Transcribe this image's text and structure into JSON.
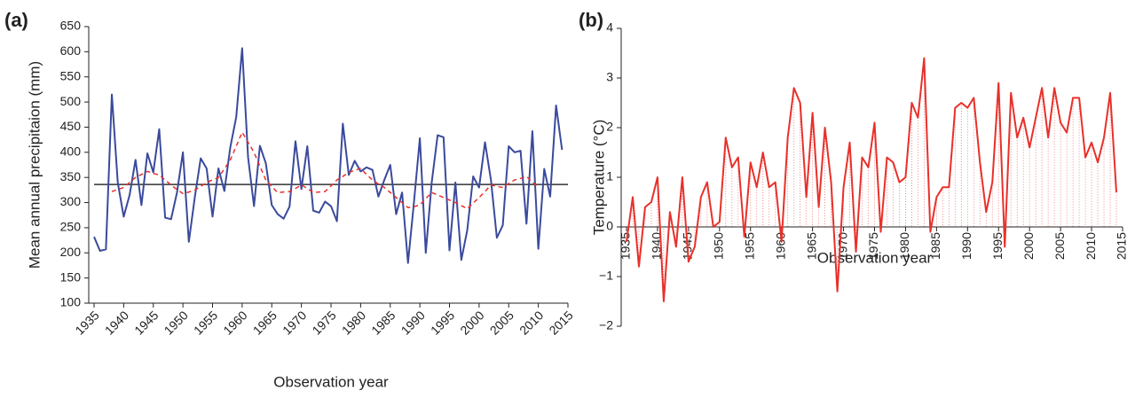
{
  "chart_data": [
    {
      "type": "line",
      "panel_label": "(a)",
      "x_label": "Observation year",
      "y_label": "Mean annual precipitaion (mm)",
      "x": [
        1935,
        1936,
        1937,
        1938,
        1939,
        1940,
        1941,
        1942,
        1943,
        1944,
        1945,
        1946,
        1947,
        1948,
        1949,
        1950,
        1951,
        1952,
        1953,
        1954,
        1955,
        1956,
        1957,
        1958,
        1959,
        1960,
        1961,
        1962,
        1963,
        1964,
        1965,
        1966,
        1967,
        1968,
        1969,
        1970,
        1971,
        1972,
        1973,
        1974,
        1975,
        1976,
        1977,
        1978,
        1979,
        1980,
        1981,
        1982,
        1983,
        1984,
        1985,
        1986,
        1987,
        1988,
        1989,
        1990,
        1991,
        1992,
        1993,
        1994,
        1995,
        1996,
        1997,
        1998,
        1999,
        2000,
        2001,
        2002,
        2003,
        2004,
        2005,
        2006,
        2007,
        2008,
        2009,
        2010,
        2011,
        2012,
        2013,
        2014
      ],
      "series": [
        {
          "color": "#3a4a9c",
          "dash": false,
          "values": [
            232,
            204,
            207,
            515,
            340,
            272,
            315,
            385,
            295,
            398,
            360,
            446,
            270,
            267,
            320,
            400,
            222,
            310,
            388,
            368,
            272,
            368,
            323,
            410,
            470,
            607,
            390,
            293,
            413,
            378,
            295,
            277,
            268,
            292,
            422,
            327,
            412,
            284,
            280,
            302,
            293,
            263,
            457,
            355,
            383,
            362,
            370,
            365,
            312,
            345,
            375,
            277,
            320,
            180,
            300,
            428,
            200,
            340,
            434,
            430,
            205,
            340,
            186,
            245,
            352,
            330,
            420,
            345,
            230,
            255,
            412,
            400,
            403,
            258,
            442,
            208,
            367,
            312,
            493,
            405
          ]
        },
        {
          "color": "#e8302a",
          "dash": true,
          "values": [
            null,
            null,
            null,
            322,
            326,
            330,
            340,
            350,
            356,
            362,
            358,
            355,
            345,
            335,
            326,
            318,
            321,
            325,
            332,
            340,
            345,
            350,
            367,
            385,
            412,
            440,
            420,
            400,
            372,
            345,
            332,
            320,
            321,
            322,
            328,
            335,
            328,
            320,
            321,
            322,
            333,
            345,
            352,
            360,
            364,
            368,
            356,
            345,
            337,
            330,
            320,
            310,
            300,
            290,
            292,
            295,
            308,
            320,
            315,
            310,
            305,
            300,
            294,
            288,
            299,
            310,
            322,
            335,
            332,
            330,
            338,
            345,
            348,
            352,
            341,
            330,
            null,
            null,
            null,
            null
          ]
        }
      ],
      "mean_line": {
        "value": 336,
        "color": "#333333"
      },
      "xlim": [
        1935,
        2015
      ],
      "xticks": [
        1935,
        1940,
        1945,
        1950,
        1955,
        1960,
        1965,
        1970,
        1975,
        1980,
        1985,
        1990,
        1995,
        2000,
        2005,
        2010,
        2015
      ],
      "ylim": [
        100,
        650
      ],
      "yticks": [
        100,
        150,
        200,
        250,
        300,
        350,
        400,
        450,
        500,
        550,
        600,
        650
      ],
      "x_tick_style": "diagonal",
      "x_axis_at_zero": false,
      "drop_lines": false
    },
    {
      "type": "line",
      "panel_label": "(b)",
      "x_label": "Observation year",
      "y_label": "Temperature (°C)",
      "x": [
        1935,
        1936,
        1937,
        1938,
        1939,
        1940,
        1941,
        1942,
        1943,
        1944,
        1945,
        1946,
        1947,
        1948,
        1949,
        1950,
        1951,
        1952,
        1953,
        1954,
        1955,
        1956,
        1957,
        1958,
        1959,
        1960,
        1961,
        1962,
        1963,
        1964,
        1965,
        1966,
        1967,
        1968,
        1969,
        1970,
        1971,
        1972,
        1973,
        1974,
        1975,
        1976,
        1977,
        1978,
        1979,
        1980,
        1981,
        1982,
        1983,
        1984,
        1985,
        1986,
        1987,
        1988,
        1989,
        1990,
        1991,
        1992,
        1993,
        1994,
        1995,
        1996,
        1997,
        1998,
        1999,
        2000,
        2001,
        2002,
        2003,
        2004,
        2005,
        2006,
        2007,
        2008,
        2009,
        2010,
        2011,
        2012,
        2013,
        2014
      ],
      "series": [
        {
          "color": "#e8302a",
          "dash": false,
          "values": [
            -0.3,
            0.6,
            -0.8,
            0.4,
            0.5,
            1.0,
            -1.5,
            0.3,
            -0.4,
            1.0,
            -0.7,
            -0.4,
            0.6,
            0.9,
            0.0,
            0.1,
            1.8,
            1.2,
            1.4,
            -0.2,
            1.3,
            0.8,
            1.5,
            0.8,
            0.9,
            -0.3,
            1.8,
            2.8,
            2.5,
            0.6,
            2.3,
            0.4,
            2.0,
            0.9,
            -1.3,
            0.8,
            1.7,
            -0.5,
            1.4,
            1.2,
            2.1,
            -0.1,
            1.4,
            1.3,
            0.9,
            1.0,
            2.5,
            2.2,
            3.4,
            -0.1,
            0.6,
            0.8,
            0.8,
            2.4,
            2.5,
            2.4,
            2.6,
            1.3,
            0.3,
            0.9,
            2.9,
            -0.4,
            2.7,
            1.8,
            2.2,
            1.6,
            2.2,
            2.8,
            1.8,
            2.8,
            2.1,
            1.9,
            2.6,
            2.6,
            1.4,
            1.7,
            1.3,
            1.8,
            2.7,
            0.7
          ]
        }
      ],
      "xlim": [
        1935,
        2015
      ],
      "xticks": [
        1935,
        1940,
        1945,
        1950,
        1955,
        1960,
        1965,
        1970,
        1975,
        1980,
        1985,
        1990,
        1995,
        2000,
        2005,
        2010,
        2015
      ],
      "ylim": [
        -2,
        4
      ],
      "yticks": [
        {
          "value": -2,
          "label": "−2"
        },
        {
          "value": -1,
          "label": "−1"
        },
        0,
        1,
        2,
        3,
        4
      ],
      "x_tick_style": "vertical",
      "x_axis_at_zero": true,
      "drop_lines": true
    }
  ]
}
